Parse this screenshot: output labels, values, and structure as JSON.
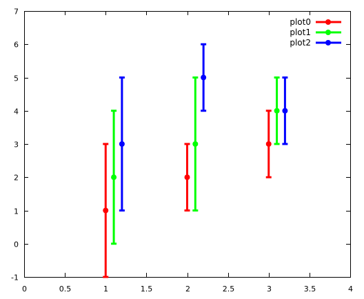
{
  "chart_data": {
    "type": "scatter",
    "title": "",
    "xlabel": "",
    "ylabel": "",
    "xlim": [
      0,
      4
    ],
    "ylim": [
      -1,
      7
    ],
    "xticks": [
      0,
      0.5,
      1,
      1.5,
      2,
      2.5,
      3,
      3.5,
      4
    ],
    "xtick_labels": [
      "0",
      "0.5",
      "1",
      "1.5",
      "2",
      "2.5",
      "3",
      "3.5",
      "4"
    ],
    "yticks": [
      -1,
      0,
      1,
      2,
      3,
      4,
      5,
      6,
      7
    ],
    "ytick_labels": [
      "-1",
      "0",
      "1",
      "2",
      "3",
      "4",
      "5",
      "6",
      "7"
    ],
    "grid": false,
    "legend_position": "top-right",
    "error_bars": true,
    "series": [
      {
        "name": "plot0",
        "color": "#ff0000",
        "points": [
          {
            "x": 1.0,
            "y": 1,
            "ylow": -1,
            "yhigh": 3
          },
          {
            "x": 2.0,
            "y": 2,
            "ylow": 1,
            "yhigh": 3
          },
          {
            "x": 3.0,
            "y": 3,
            "ylow": 2,
            "yhigh": 4
          }
        ]
      },
      {
        "name": "plot1",
        "color": "#00ff00",
        "points": [
          {
            "x": 1.1,
            "y": 2,
            "ylow": 0,
            "yhigh": 4
          },
          {
            "x": 2.1,
            "y": 3,
            "ylow": 1,
            "yhigh": 5
          },
          {
            "x": 3.1,
            "y": 4,
            "ylow": 3,
            "yhigh": 5
          }
        ]
      },
      {
        "name": "plot2",
        "color": "#0000ff",
        "points": [
          {
            "x": 1.2,
            "y": 3,
            "ylow": 1,
            "yhigh": 5
          },
          {
            "x": 2.2,
            "y": 5,
            "ylow": 4,
            "yhigh": 6
          },
          {
            "x": 3.2,
            "y": 4,
            "ylow": 3,
            "yhigh": 5
          }
        ]
      }
    ]
  }
}
